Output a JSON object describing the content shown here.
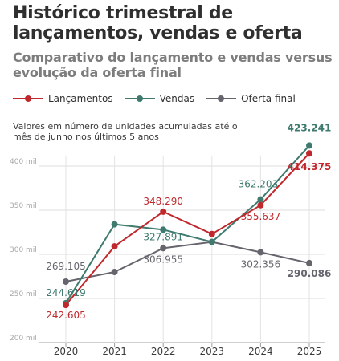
{
  "header": {
    "title": "Histórico trimestral de lançamentos, vendas e oferta",
    "subtitle": "Comparativo do lançamento e vendas versus evolução da oferta final",
    "note": "Valores em número de unidades acumuladas até o mês de junho nos últimos 5 anos"
  },
  "chart_data": {
    "type": "line",
    "title": "Histórico trimestral de lançamentos, vendas e oferta",
    "subtitle": "Comparativo do lançamento e vendas versus evolução da oferta final",
    "xlabel": "",
    "ylabel": "",
    "x": [
      "2020",
      "2021",
      "2022",
      "2023",
      "2024",
      "2025"
    ],
    "ylim": [
      200000,
      430000
    ],
    "yticks": [
      200000,
      250000,
      300000,
      350000,
      400000
    ],
    "ytick_labels": [
      "200 mil",
      "250 mil",
      "300 mil",
      "350 mil",
      "400 mil"
    ],
    "grid": "horizontal",
    "legend_position": "top-left",
    "series": [
      {
        "name": "Lançamentos",
        "color": "#c0282d",
        "values": [
          242605,
          309000,
          348290,
          323000,
          355637,
          414375
        ]
      },
      {
        "name": "Vendas",
        "color": "#3f7a6f",
        "values": [
          244619,
          334000,
          327891,
          314000,
          362203,
          423241
        ]
      },
      {
        "name": "Oferta final",
        "color": "#66646c",
        "values": [
          269105,
          280000,
          306955,
          314000,
          302356,
          290086
        ]
      }
    ],
    "labels": [
      {
        "series": 0,
        "index": 0,
        "text": "242.605"
      },
      {
        "series": 0,
        "index": 2,
        "text": "348.290"
      },
      {
        "series": 0,
        "index": 4,
        "text": "355.637"
      },
      {
        "series": 0,
        "index": 5,
        "text": "414.375"
      },
      {
        "series": 1,
        "index": 0,
        "text": "244.619"
      },
      {
        "series": 1,
        "index": 2,
        "text": "327.891"
      },
      {
        "series": 1,
        "index": 4,
        "text": "362.203"
      },
      {
        "series": 1,
        "index": 5,
        "text": "423.241"
      },
      {
        "series": 2,
        "index": 0,
        "text": "269.105"
      },
      {
        "series": 2,
        "index": 2,
        "text": "306.955"
      },
      {
        "series": 2,
        "index": 4,
        "text": "302.356"
      },
      {
        "series": 2,
        "index": 5,
        "text": "290.086"
      }
    ]
  }
}
